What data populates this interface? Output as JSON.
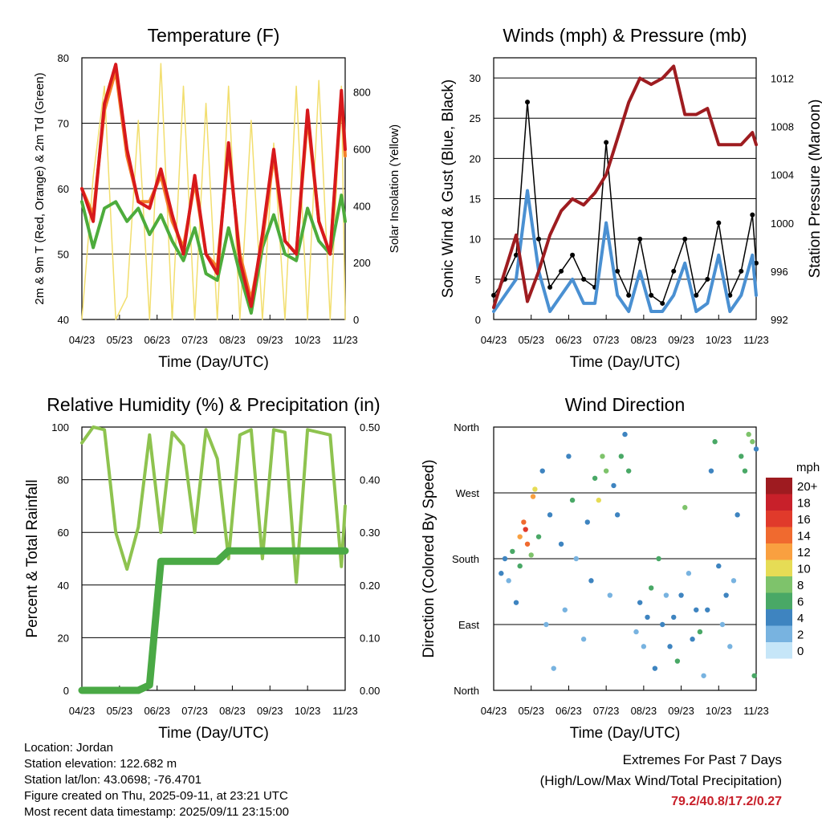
{
  "chart_data": [
    {
      "type": "line",
      "title": "Temperature (F)",
      "xlabel": "Time (Day/UTC)",
      "ylabel": "2m & 9m T (Red, Orange) & 2m Td (Green)",
      "ylabel_right": "Solar Insolation (Yellow)",
      "x_ticks": [
        "04/23",
        "05/23",
        "06/23",
        "07/23",
        "08/23",
        "09/23",
        "10/23",
        "11/23"
      ],
      "ylim": [
        40,
        80
      ],
      "y_ticks": [
        40,
        50,
        60,
        70,
        80
      ],
      "ylim_right": [
        0,
        920
      ],
      "y_ticks_right": [
        0,
        200,
        400,
        600,
        800
      ],
      "x": [
        0,
        0.3,
        0.6,
        0.9,
        1.2,
        1.5,
        1.8,
        2.1,
        2.4,
        2.7,
        3.0,
        3.3,
        3.6,
        3.9,
        4.2,
        4.5,
        4.8,
        5.1,
        5.4,
        5.7,
        6.0,
        6.3,
        6.6,
        6.9,
        7.0
      ],
      "series": [
        {
          "color": "#d7191c",
          "values": [
            60,
            55,
            73,
            79,
            66,
            58,
            57,
            63,
            56,
            50,
            62,
            50,
            47,
            67,
            49,
            42,
            53,
            66,
            52,
            50,
            72,
            55,
            50,
            75,
            66
          ]
        },
        {
          "color": "#f4802a",
          "values": [
            60,
            56,
            72,
            78,
            65,
            58,
            58,
            62,
            55,
            51,
            61,
            50,
            48,
            66,
            50,
            43,
            52,
            65,
            52,
            50,
            71,
            55,
            50,
            74,
            65
          ]
        },
        {
          "color": "#4dac3c",
          "values": [
            58,
            51,
            57,
            58,
            55,
            57,
            53,
            56,
            52,
            49,
            54,
            47,
            46,
            54,
            47,
            41,
            51,
            56,
            50,
            49,
            57,
            52,
            50,
            59,
            55
          ]
        },
        {
          "color": "#f2de6e",
          "axis": "right",
          "values": [
            0,
            500,
            820,
            0,
            80,
            700,
            0,
            900,
            0,
            820,
            0,
            760,
            0,
            820,
            0,
            700,
            0,
            620,
            0,
            820,
            0,
            840,
            0,
            820,
            0
          ]
        }
      ]
    },
    {
      "type": "line",
      "title": "Winds (mph) & Pressure (mb)",
      "xlabel": "Time (Day/UTC)",
      "ylabel": "Sonic Wind & Gust (Blue, Black)",
      "ylabel_right": "Station Pressure (Maroon)",
      "x_ticks": [
        "04/23",
        "05/23",
        "06/23",
        "07/23",
        "08/23",
        "09/23",
        "10/23",
        "11/23"
      ],
      "ylim": [
        0,
        32.5
      ],
      "y_ticks": [
        0,
        5,
        10,
        15,
        20,
        25,
        30
      ],
      "ylim_right": [
        992,
        1013.7
      ],
      "y_ticks_right": [
        992,
        996,
        1000,
        1004,
        1008,
        1012
      ],
      "x": [
        0,
        0.3,
        0.6,
        0.9,
        1.2,
        1.5,
        1.8,
        2.1,
        2.4,
        2.7,
        3.0,
        3.3,
        3.6,
        3.9,
        4.2,
        4.5,
        4.8,
        5.1,
        5.4,
        5.7,
        6.0,
        6.3,
        6.6,
        6.9,
        7.0
      ],
      "series": [
        {
          "color": "#000000",
          "values": [
            3,
            5,
            8,
            27,
            10,
            4,
            6,
            8,
            5,
            4,
            22,
            6,
            3,
            10,
            3,
            2,
            6,
            10,
            3,
            5,
            12,
            3,
            6,
            13,
            7
          ]
        },
        {
          "color": "#4a90d2",
          "values": [
            1,
            3,
            5,
            16,
            6,
            1,
            3,
            5,
            2,
            2,
            12,
            3,
            1,
            6,
            1,
            1,
            3,
            7,
            1,
            2,
            8,
            1,
            3,
            8,
            3
          ]
        },
        {
          "color": "#9e1c20",
          "axis": "right",
          "values": [
            993,
            996,
            999,
            993.5,
            996,
            999,
            1001,
            1002,
            1001.5,
            1002.5,
            1004,
            1007,
            1010,
            1012,
            1011.5,
            1012,
            1013,
            1009,
            1009,
            1009.5,
            1006.5,
            1006.5,
            1006.5,
            1007.5,
            1006.5
          ]
        }
      ]
    },
    {
      "type": "line",
      "title": "Relative Humidity (%) & Precipitation (in)",
      "xlabel": "Time (Day/UTC)",
      "ylabel": "Percent & Total Rainfall",
      "x_ticks": [
        "04/23",
        "05/23",
        "06/23",
        "07/23",
        "08/23",
        "09/23",
        "10/23",
        "11/23"
      ],
      "ylim": [
        0,
        100
      ],
      "y_ticks": [
        0,
        20,
        40,
        60,
        80,
        100
      ],
      "ylim_right": [
        0,
        0.5
      ],
      "y_ticks_right": [
        "0.00",
        "0.10",
        "0.20",
        "0.30",
        "0.40",
        "0.50"
      ],
      "x": [
        0,
        0.3,
        0.6,
        0.9,
        1.2,
        1.5,
        1.8,
        2.1,
        2.4,
        2.7,
        3.0,
        3.3,
        3.6,
        3.9,
        4.2,
        4.5,
        4.8,
        5.1,
        5.4,
        5.7,
        6.0,
        6.3,
        6.6,
        6.9,
        7.0
      ],
      "series": [
        {
          "color": "#8ec34f",
          "values": [
            94,
            100,
            99,
            60,
            46,
            62,
            97,
            60,
            98,
            93,
            60,
            99,
            88,
            50,
            97,
            99,
            50,
            99,
            98,
            41,
            99,
            98,
            97,
            47,
            70
          ]
        },
        {
          "color": "#4aa945",
          "axis": "right",
          "values": [
            0,
            0,
            0,
            0,
            0,
            0,
            0.01,
            0.245,
            0.245,
            0.245,
            0.245,
            0.245,
            0.245,
            0.265,
            0.265,
            0.265,
            0.265,
            0.265,
            0.265,
            0.265,
            0.265,
            0.265,
            0.265,
            0.265,
            0.265
          ]
        }
      ]
    },
    {
      "type": "scatter",
      "title": "Wind Direction",
      "xlabel": "Time (Day/UTC)",
      "ylabel": "Direction (Colored By Speed)",
      "x_ticks": [
        "04/23",
        "05/23",
        "06/23",
        "07/23",
        "08/23",
        "09/23",
        "10/23",
        "11/23"
      ],
      "y_ticks": [
        "North",
        "East",
        "South",
        "West",
        "North"
      ],
      "ylim": [
        0,
        360
      ],
      "legend": {
        "title": "mph",
        "labels": [
          "20+",
          "18",
          "16",
          "14",
          "12",
          "10",
          "8",
          "6",
          "4",
          "2",
          "0"
        ],
        "colors": [
          "#9e1b20",
          "#c8202a",
          "#e03a2b",
          "#f06a2f",
          "#f9a040",
          "#e6dc55",
          "#7ec36b",
          "#49a866",
          "#3e84c0",
          "#78b3e0",
          "#c6e6f8"
        ]
      },
      "points": [
        [
          0.2,
          160,
          3
        ],
        [
          0.3,
          180,
          4
        ],
        [
          0.4,
          150,
          2
        ],
        [
          0.5,
          190,
          5
        ],
        [
          0.6,
          120,
          3
        ],
        [
          0.7,
          170,
          6
        ],
        [
          0.7,
          210,
          12
        ],
        [
          0.8,
          230,
          14
        ],
        [
          0.85,
          220,
          16
        ],
        [
          0.9,
          200,
          13
        ],
        [
          1.0,
          185,
          8
        ],
        [
          1.05,
          265,
          12
        ],
        [
          1.1,
          275,
          10
        ],
        [
          1.2,
          210,
          6
        ],
        [
          1.3,
          300,
          4
        ],
        [
          1.4,
          90,
          2
        ],
        [
          1.5,
          240,
          3
        ],
        [
          1.6,
          30,
          1
        ],
        [
          1.8,
          200,
          4
        ],
        [
          1.9,
          110,
          2
        ],
        [
          2.0,
          320,
          3
        ],
        [
          2.1,
          260,
          5
        ],
        [
          2.2,
          180,
          2
        ],
        [
          2.4,
          70,
          1
        ],
        [
          2.5,
          230,
          4
        ],
        [
          2.6,
          150,
          3
        ],
        [
          2.7,
          290,
          6
        ],
        [
          2.8,
          260,
          9
        ],
        [
          2.9,
          320,
          8
        ],
        [
          3.0,
          300,
          7
        ],
        [
          3.1,
          130,
          2
        ],
        [
          3.2,
          280,
          4
        ],
        [
          3.3,
          240,
          3
        ],
        [
          3.4,
          320,
          5
        ],
        [
          3.5,
          350,
          4
        ],
        [
          3.6,
          300,
          6
        ],
        [
          3.8,
          80,
          2
        ],
        [
          3.9,
          120,
          3
        ],
        [
          4.0,
          60,
          2
        ],
        [
          4.1,
          100,
          4
        ],
        [
          4.2,
          140,
          6
        ],
        [
          4.3,
          30,
          3
        ],
        [
          4.4,
          180,
          5
        ],
        [
          4.5,
          90,
          3
        ],
        [
          4.6,
          130,
          2
        ],
        [
          4.7,
          60,
          4
        ],
        [
          4.8,
          100,
          3
        ],
        [
          4.9,
          40,
          5
        ],
        [
          5.0,
          130,
          4
        ],
        [
          5.1,
          250,
          7
        ],
        [
          5.2,
          160,
          2
        ],
        [
          5.3,
          70,
          3
        ],
        [
          5.4,
          110,
          4
        ],
        [
          5.5,
          80,
          5
        ],
        [
          5.6,
          20,
          2
        ],
        [
          5.7,
          110,
          3
        ],
        [
          5.8,
          300,
          4
        ],
        [
          5.9,
          340,
          5
        ],
        [
          6.0,
          170,
          3
        ],
        [
          6.1,
          90,
          2
        ],
        [
          6.2,
          130,
          3
        ],
        [
          6.3,
          60,
          1
        ],
        [
          6.4,
          150,
          2
        ],
        [
          6.5,
          240,
          4
        ],
        [
          6.6,
          320,
          6
        ],
        [
          6.7,
          300,
          5
        ],
        [
          6.8,
          350,
          8
        ],
        [
          6.9,
          340,
          7
        ],
        [
          6.95,
          20,
          6
        ],
        [
          7.0,
          330,
          4
        ]
      ]
    }
  ],
  "info": {
    "location": "Location: Jordan",
    "elevation": "Station elevation: 122.682 m",
    "latlon": "Station lat/lon: 43.0698; -76.4701",
    "created": "Figure created on Thu, 2025-09-11, at 23:21 UTC",
    "recent": "Most recent data timestamp: 2025/09/11 23:15:00"
  },
  "extremes": {
    "title": "Extremes For Past 7 Days",
    "subtitle": "(High/Low/Max Wind/Total Precipitation)",
    "values": "79.2/40.8/17.2/0.27"
  }
}
